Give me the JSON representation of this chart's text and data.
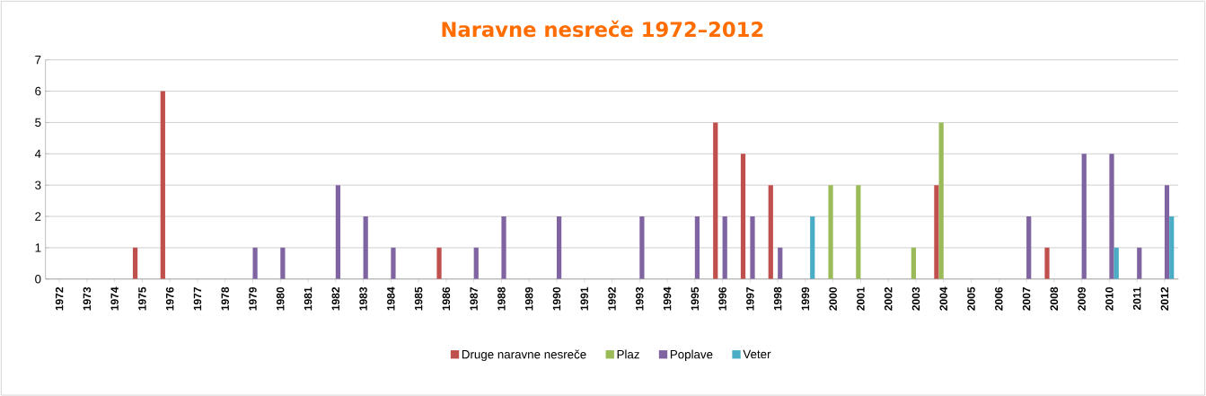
{
  "chart_data": {
    "type": "bar",
    "title": "Naravne nesreče 1972–2012",
    "categories": [
      "1972",
      "1973",
      "1974",
      "1975",
      "1976",
      "1977",
      "1978",
      "1979",
      "1980",
      "1981",
      "1982",
      "1983",
      "1984",
      "1985",
      "1986",
      "1987",
      "1988",
      "1989",
      "1990",
      "1991",
      "1992",
      "1993",
      "1994",
      "1995",
      "1996",
      "1997",
      "1998",
      "1999",
      "2000",
      "2001",
      "2002",
      "2003",
      "2004",
      "2005",
      "2006",
      "2007",
      "2008",
      "2009",
      "2010",
      "2011",
      "2012"
    ],
    "series": [
      {
        "name": "Druge naravne nesreče",
        "color": "#c0504d",
        "values": [
          0,
          0,
          0,
          1,
          6,
          0,
          0,
          0,
          0,
          0,
          0,
          0,
          0,
          0,
          1,
          0,
          0,
          0,
          0,
          0,
          0,
          0,
          0,
          0,
          5,
          4,
          3,
          0,
          0,
          0,
          0,
          0,
          3,
          0,
          0,
          0,
          1,
          0,
          0,
          0,
          0
        ]
      },
      {
        "name": "Plaz",
        "color": "#9bbb59",
        "values": [
          0,
          0,
          0,
          0,
          0,
          0,
          0,
          0,
          0,
          0,
          0,
          0,
          0,
          0,
          0,
          0,
          0,
          0,
          0,
          0,
          0,
          0,
          0,
          0,
          0,
          0,
          0,
          0,
          3,
          3,
          0,
          1,
          5,
          0,
          0,
          0,
          0,
          0,
          0,
          0,
          0
        ]
      },
      {
        "name": "Poplave",
        "color": "#8064a2",
        "values": [
          0,
          0,
          0,
          0,
          0,
          0,
          0,
          1,
          1,
          0,
          3,
          2,
          1,
          0,
          0,
          1,
          2,
          0,
          2,
          0,
          0,
          2,
          0,
          2,
          2,
          2,
          1,
          0,
          0,
          0,
          0,
          0,
          0,
          0,
          0,
          2,
          0,
          4,
          4,
          1,
          3
        ]
      },
      {
        "name": "Veter",
        "color": "#4bacc6",
        "values": [
          0,
          0,
          0,
          0,
          0,
          0,
          0,
          0,
          0,
          0,
          0,
          0,
          0,
          0,
          0,
          0,
          0,
          0,
          0,
          0,
          0,
          0,
          0,
          0,
          0,
          0,
          0,
          2,
          0,
          0,
          0,
          0,
          0,
          0,
          0,
          0,
          0,
          0,
          1,
          0,
          2
        ]
      }
    ],
    "ylim": [
      0,
      7
    ],
    "yticks": [
      0,
      1,
      2,
      3,
      4,
      5,
      6,
      7
    ],
    "grid": "y",
    "legend": "bottom"
  }
}
